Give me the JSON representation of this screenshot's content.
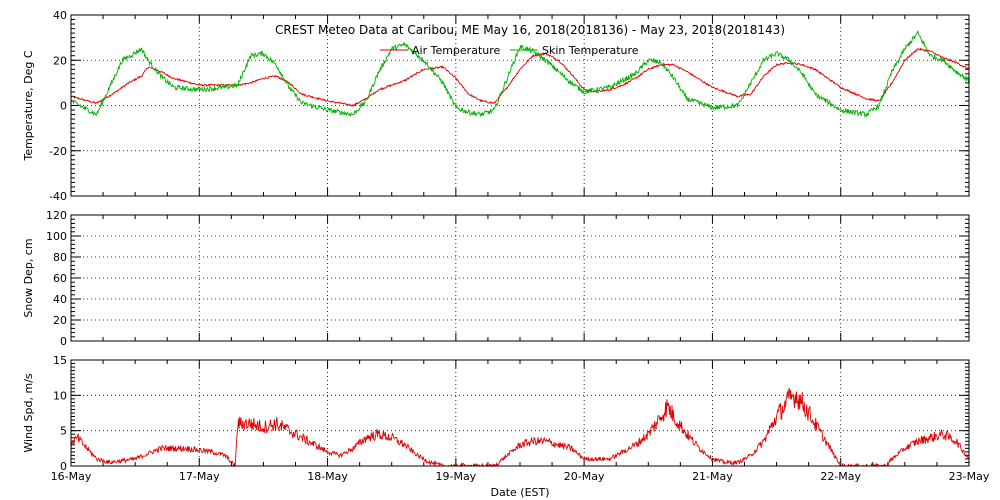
{
  "chart_data": {
    "title": "CREST Meteo Data at Caribou, ME    May 16, 2018(2018136) - May 23, 2018(2018143)",
    "xlabel": "Date (EST)",
    "x_tick_labels": [
      "16-May",
      "17-May",
      "18-May",
      "19-May",
      "20-May",
      "21-May",
      "22-May",
      "23-May"
    ],
    "x_range_days": [
      0,
      7
    ],
    "panels": [
      {
        "id": "temperature",
        "type": "line",
        "ylabel": "Temperature, Deg C",
        "ylim": [
          -40,
          40
        ],
        "yticks": [
          -40,
          -20,
          0,
          20,
          40
        ],
        "ytick_labels": [
          "-40",
          "-20",
          "0",
          "20",
          "40"
        ],
        "legend_placement": "top-right",
        "series": [
          {
            "name": "Air Temperature",
            "color": "#e00000",
            "x": [
              0,
              0.2,
              0.35,
              0.45,
              0.55,
              0.6,
              0.7,
              0.8,
              1.0,
              1.2,
              1.3,
              1.4,
              1.5,
              1.6,
              1.7,
              1.8,
              2.0,
              2.1,
              2.2,
              2.3,
              2.4,
              2.6,
              2.75,
              2.9,
              3.0,
              3.1,
              3.2,
              3.3,
              3.4,
              3.5,
              3.6,
              3.7,
              3.8,
              3.9,
              4.0,
              4.1,
              4.2,
              4.3,
              4.4,
              4.5,
              4.6,
              4.7,
              4.8,
              5.0,
              5.2,
              5.3,
              5.4,
              5.5,
              5.6,
              5.7,
              5.8,
              6.0,
              6.2,
              6.3,
              6.4,
              6.5,
              6.6,
              6.7,
              6.8,
              6.9,
              7.0
            ],
            "y": [
              4,
              1,
              6,
              10,
              13,
              17,
              15,
              12,
              9,
              9,
              9,
              10,
              12,
              13,
              10,
              5,
              2,
              1,
              0,
              3,
              7,
              11,
              16,
              17,
              12,
              5,
              2,
              1,
              8,
              16,
              22,
              23,
              20,
              14,
              7,
              6,
              7,
              9,
              12,
              16,
              18,
              18,
              15,
              8,
              4,
              5,
              13,
              18,
              19,
              18,
              16,
              8,
              3,
              2,
              10,
              20,
              25,
              24,
              21,
              19,
              16
            ],
            "points": 1440
          },
          {
            "name": "Skin Temperature",
            "color": "#00b000",
            "x": [
              0,
              0.1,
              0.2,
              0.3,
              0.4,
              0.55,
              0.6,
              0.7,
              0.8,
              1.0,
              1.2,
              1.3,
              1.4,
              1.5,
              1.6,
              1.7,
              1.8,
              2.0,
              2.1,
              2.2,
              2.3,
              2.4,
              2.5,
              2.6,
              2.75,
              2.9,
              3.0,
              3.1,
              3.2,
              3.3,
              3.4,
              3.5,
              3.6,
              3.7,
              3.8,
              3.9,
              4.0,
              4.2,
              4.3,
              4.4,
              4.5,
              4.6,
              4.7,
              4.8,
              5.0,
              5.2,
              5.3,
              5.4,
              5.5,
              5.6,
              5.7,
              5.8,
              6.0,
              6.2,
              6.3,
              6.4,
              6.5,
              6.6,
              6.7,
              6.8,
              6.9,
              7.0
            ],
            "y": [
              2,
              -1,
              -4,
              8,
              20,
              25,
              20,
              13,
              8,
              7,
              8,
              9,
              22,
              23,
              18,
              8,
              1,
              -2,
              -3,
              -4,
              2,
              15,
              25,
              27,
              20,
              10,
              -1,
              -3,
              -4,
              -2,
              12,
              26,
              24,
              20,
              15,
              10,
              6,
              8,
              11,
              14,
              20,
              19,
              12,
              3,
              -1,
              0,
              10,
              20,
              23,
              20,
              14,
              5,
              -2,
              -4,
              0,
              15,
              25,
              32,
              22,
              20,
              15,
              11
            ],
            "points": 1440
          }
        ]
      },
      {
        "id": "snow-depth",
        "type": "line",
        "ylabel": "Snow Dep, cm",
        "ylim": [
          0,
          120
        ],
        "yticks": [
          0,
          20,
          40,
          60,
          80,
          100,
          120
        ],
        "ytick_labels": [
          "0",
          "20",
          "40",
          "60",
          "80",
          "100",
          "120"
        ],
        "series": []
      },
      {
        "id": "wind-speed",
        "type": "line",
        "ylabel": "Wind Spd, m/s",
        "ylim": [
          0,
          15
        ],
        "yticks": [
          0,
          5,
          10,
          15
        ],
        "ytick_labels": [
          "0",
          "5",
          "10",
          "15"
        ],
        "series": [
          {
            "color": "#e00000",
            "x": [
              0,
              0.05,
              0.1,
              0.2,
              0.3,
              0.5,
              0.7,
              0.9,
              1.1,
              1.2,
              1.28,
              1.3,
              1.4,
              1.5,
              1.6,
              1.7,
              1.8,
              1.9,
              2.0,
              2.1,
              2.2,
              2.3,
              2.4,
              2.5,
              2.6,
              2.7,
              2.8,
              2.9,
              3.0,
              3.05,
              3.1,
              3.2,
              3.3,
              3.4,
              3.5,
              3.6,
              3.7,
              3.8,
              3.9,
              4.0,
              4.2,
              4.3,
              4.4,
              4.5,
              4.6,
              4.65,
              4.7,
              4.8,
              4.9,
              5.0,
              5.1,
              5.2,
              5.3,
              5.4,
              5.5,
              5.6,
              5.65,
              5.7,
              5.8,
              5.9,
              6.0,
              6.1,
              6.2,
              6.3,
              6.35,
              6.4,
              6.5,
              6.6,
              6.7,
              6.8,
              6.9,
              7.0
            ],
            "y": [
              3,
              4,
              3,
              1,
              0.5,
              1,
              2.5,
              2.5,
              2,
              1.5,
              0,
              6,
              6,
              5.5,
              6,
              5,
              4,
              3,
              2,
              1.5,
              2.5,
              4,
              4.5,
              4,
              3,
              1.5,
              0.5,
              0,
              0,
              0.1,
              0,
              0,
              0,
              1.5,
              3,
              3.5,
              3.5,
              3,
              2.5,
              1,
              1,
              2,
              3,
              4.5,
              7,
              8.5,
              7,
              4.5,
              2.5,
              1,
              0.5,
              0.5,
              1.5,
              3.5,
              7,
              9.5,
              10,
              9,
              6,
              3,
              0,
              0,
              0,
              0,
              0,
              1,
              2.5,
              3.5,
              4,
              4.5,
              3.5,
              1
            ]
          }
        ]
      }
    ]
  }
}
